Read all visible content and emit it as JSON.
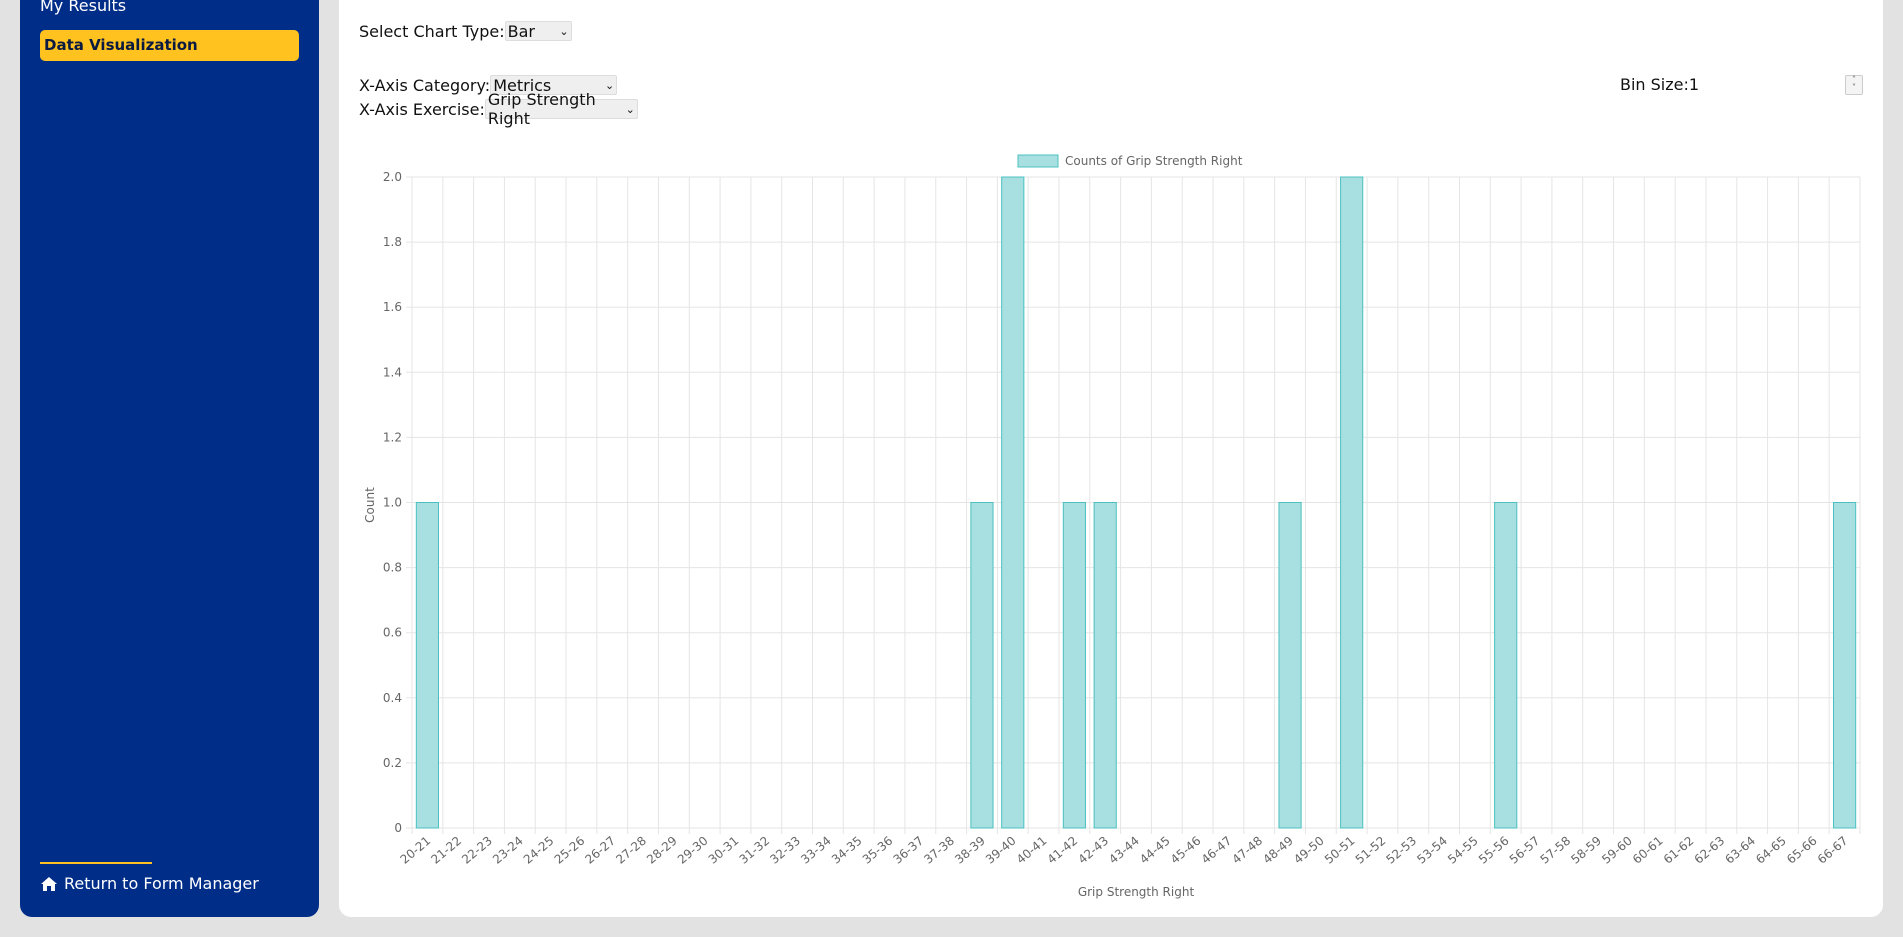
{
  "sidebar": {
    "my_results": "My Results",
    "active_item": "Data Visualization",
    "return_link": "Return to Form Manager"
  },
  "controls": {
    "chart_type_label": "Select Chart Type:",
    "chart_type_value": "Bar",
    "category_label": "X-Axis Category:",
    "category_value": "Metrics",
    "exercise_label": "X-Axis Exercise:",
    "exercise_value": "Grip Strength Right",
    "bin_label": "Bin Size:",
    "bin_value": "1"
  },
  "colors": {
    "sidebar": "#002d88",
    "accent": "#ffc21f",
    "bar_fill": "#a8dfe0",
    "bar_stroke": "#4cc0c0"
  },
  "chart_data": {
    "type": "bar",
    "legend": "Counts of Grip Strength Right",
    "xlabel": "Grip Strength Right",
    "ylabel": "Count",
    "ylim": [
      0,
      2
    ],
    "yticks": [
      "0",
      "0.2",
      "0.4",
      "0.6",
      "0.8",
      "1.0",
      "1.2",
      "1.4",
      "1.6",
      "1.8",
      "2.0"
    ],
    "legend_position": "top",
    "grid": true,
    "categories": [
      "20-21",
      "21-22",
      "22-23",
      "23-24",
      "24-25",
      "25-26",
      "26-27",
      "27-28",
      "28-29",
      "29-30",
      "30-31",
      "31-32",
      "32-33",
      "33-34",
      "34-35",
      "35-36",
      "36-37",
      "37-38",
      "38-39",
      "39-40",
      "40-41",
      "41-42",
      "42-43",
      "43-44",
      "44-45",
      "45-46",
      "46-47",
      "47-48",
      "48-49",
      "49-50",
      "50-51",
      "51-52",
      "52-53",
      "53-54",
      "54-55",
      "55-56",
      "56-57",
      "57-58",
      "58-59",
      "59-60",
      "60-61",
      "61-62",
      "62-63",
      "63-64",
      "64-65",
      "65-66",
      "66-67"
    ],
    "values": [
      1,
      0,
      0,
      0,
      0,
      0,
      0,
      0,
      0,
      0,
      0,
      0,
      0,
      0,
      0,
      0,
      0,
      0,
      1,
      2,
      0,
      1,
      1,
      0,
      0,
      0,
      0,
      0,
      1,
      0,
      2,
      0,
      0,
      0,
      0,
      1,
      0,
      0,
      0,
      0,
      0,
      0,
      0,
      0,
      0,
      0,
      1
    ]
  }
}
